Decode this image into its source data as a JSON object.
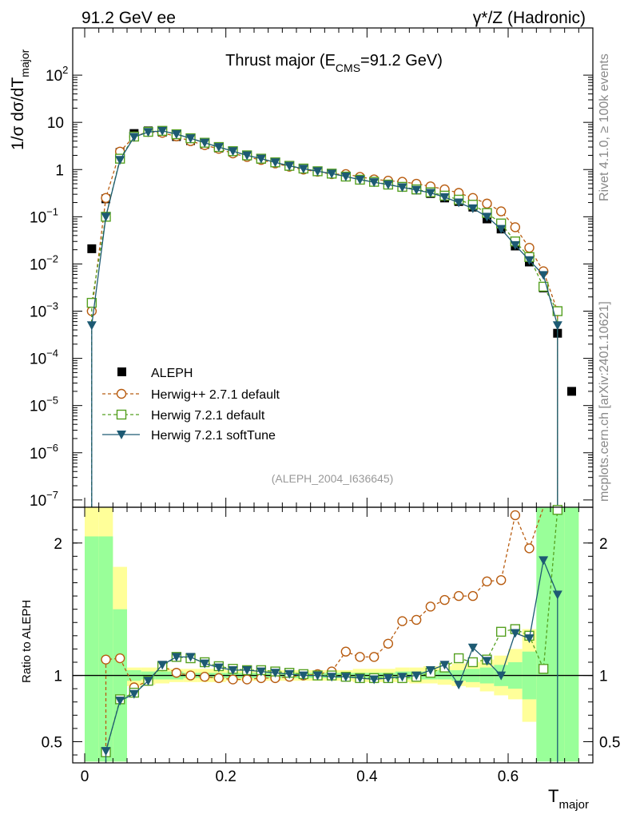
{
  "header": {
    "left": "91.2 GeV ee",
    "right": "γ*/Z (Hadronic)"
  },
  "side_text": {
    "rivet": "Rivet 4.1.0, ≥ 100k events",
    "mcplots": "mcplots.cern.ch [arXiv:2401.10621]"
  },
  "chart_data": [
    {
      "id": "main",
      "type": "scatter",
      "title_prefix": "Thrust major (E",
      "title_sub": "CMS",
      "title_suffix": "=91.2 GeV)",
      "ylabel_main": "1/σ  dσ/dT",
      "ylabel_sub": "major",
      "yscale": "log",
      "ylim": [
        7e-08,
        1000
      ],
      "xlim": [
        -0.017,
        0.72
      ],
      "y_ticks": [
        {
          "v": 1e-07,
          "base": "10",
          "exp": "−7"
        },
        {
          "v": 1e-06,
          "base": "10",
          "exp": "−6"
        },
        {
          "v": 1e-05,
          "base": "10",
          "exp": "−5"
        },
        {
          "v": 0.0001,
          "base": "10",
          "exp": "−4"
        },
        {
          "v": 0.001,
          "base": "10",
          "exp": "−3"
        },
        {
          "v": 0.01,
          "base": "10",
          "exp": "−2"
        },
        {
          "v": 0.1,
          "base": "10",
          "exp": "−1"
        },
        {
          "v": 1,
          "base": "1",
          "exp": ""
        },
        {
          "v": 10,
          "base": "10",
          "exp": ""
        },
        {
          "v": 100,
          "base": "10",
          "exp": "2"
        }
      ],
      "watermark": "(ALEPH_2004_I636645)",
      "legend": [
        {
          "label": "ALEPH"
        },
        {
          "label": "Herwig++ 2.7.1 default"
        },
        {
          "label": "Herwig 7.2.1 default"
        },
        {
          "label": "Herwig 7.2.1 softTune"
        }
      ],
      "x": [
        0.01,
        0.03,
        0.05,
        0.07,
        0.09,
        0.11,
        0.13,
        0.15,
        0.17,
        0.19,
        0.21,
        0.23,
        0.25,
        0.27,
        0.29,
        0.31,
        0.33,
        0.35,
        0.37,
        0.39,
        0.41,
        0.43,
        0.45,
        0.47,
        0.49,
        0.51,
        0.53,
        0.55,
        0.57,
        0.59,
        0.61,
        0.63,
        0.65,
        0.67,
        0.69
      ],
      "series": [
        {
          "name": "ALEPH",
          "color": "#000000",
          "marker": "square-filled",
          "values": [
            0.021,
            0.24,
            2.3,
            5.8,
            6.6,
            6.2,
            5.0,
            4.1,
            3.4,
            2.85,
            2.35,
            1.95,
            1.65,
            1.4,
            1.2,
            1.05,
            0.92,
            0.82,
            0.72,
            0.63,
            0.56,
            0.49,
            0.43,
            0.37,
            0.31,
            0.25,
            0.21,
            0.16,
            0.09,
            0.055,
            0.024,
            0.011,
            0.0031,
            0.00034,
            2e-05
          ]
        },
        {
          "name": "Herwig++ 2.7.1 default",
          "color": "#b85c10",
          "marker": "circle-open",
          "dash": "4,3",
          "values": [
            0.001,
            0.25,
            2.4,
            5.0,
            6.3,
            6.0,
            5.05,
            4.0,
            3.3,
            2.75,
            2.2,
            1.85,
            1.6,
            1.35,
            1.15,
            1.0,
            0.9,
            0.8,
            0.8,
            0.7,
            0.62,
            0.58,
            0.55,
            0.5,
            0.44,
            0.38,
            0.32,
            0.25,
            0.19,
            0.13,
            0.06,
            0.022,
            0.007,
            0.001
          ]
        },
        {
          "name": "Herwig 7.2.1 default",
          "color": "#55a020",
          "marker": "square-open",
          "dash": "4,3",
          "values": [
            0.0015,
            0.1,
            1.7,
            5.0,
            6.3,
            6.6,
            5.6,
            4.6,
            3.7,
            3.0,
            2.45,
            2.0,
            1.7,
            1.42,
            1.2,
            1.05,
            0.92,
            0.82,
            0.71,
            0.61,
            0.55,
            0.48,
            0.43,
            0.38,
            0.33,
            0.28,
            0.23,
            0.18,
            0.12,
            0.072,
            0.03,
            0.014,
            0.0033,
            0.001
          ]
        },
        {
          "name": "Herwig 7.2.1 softTune",
          "color": "#1d5a73",
          "marker": "triangle-down",
          "values": [
            0.0005,
            0.1,
            1.6,
            4.9,
            6.2,
            6.6,
            5.6,
            4.6,
            3.7,
            3.0,
            2.45,
            2.0,
            1.7,
            1.42,
            1.2,
            1.04,
            0.92,
            0.82,
            0.71,
            0.61,
            0.54,
            0.48,
            0.42,
            0.37,
            0.32,
            0.26,
            0.2,
            0.15,
            0.1,
            0.055,
            0.025,
            0.012,
            0.0058,
            0.0005
          ]
        }
      ]
    },
    {
      "id": "ratio",
      "type": "scatter",
      "ylabel": "Ratio to ALEPH",
      "ylim": [
        0.34,
        2.27
      ],
      "xlim": [
        -0.017,
        0.72
      ],
      "xlabel_main": "T",
      "xlabel_sub": "major",
      "x_ticks": [
        {
          "v": 0,
          "label": "0"
        },
        {
          "v": 0.2,
          "label": "0.2"
        },
        {
          "v": 0.4,
          "label": "0.4"
        },
        {
          "v": 0.6,
          "label": "0.6"
        }
      ],
      "y_ticks": [
        {
          "v": 0.5,
          "label": "0.5"
        },
        {
          "v": 1,
          "label": "1"
        },
        {
          "v": 2,
          "label": "2"
        }
      ],
      "band_x_edges": [
        0,
        0.02,
        0.04,
        0.06,
        0.08,
        0.1,
        0.12,
        0.14,
        0.16,
        0.18,
        0.2,
        0.22,
        0.24,
        0.26,
        0.28,
        0.3,
        0.32,
        0.34,
        0.36,
        0.38,
        0.4,
        0.42,
        0.44,
        0.46,
        0.48,
        0.5,
        0.52,
        0.54,
        0.56,
        0.58,
        0.6,
        0.62,
        0.64,
        0.66,
        0.68,
        0.7
      ],
      "band_outer": [
        [
          0.35,
          2.27
        ],
        [
          0.35,
          2.27
        ],
        [
          0.35,
          1.82
        ],
        [
          0.92,
          1.06
        ],
        [
          0.93,
          1.06
        ],
        [
          0.94,
          1.06
        ],
        [
          0.95,
          1.05
        ],
        [
          0.95,
          1.05
        ],
        [
          0.95,
          1.05
        ],
        [
          0.95,
          1.05
        ],
        [
          0.96,
          1.04
        ],
        [
          0.96,
          1.04
        ],
        [
          0.96,
          1.04
        ],
        [
          0.96,
          1.04
        ],
        [
          0.96,
          1.04
        ],
        [
          0.96,
          1.04
        ],
        [
          0.96,
          1.04
        ],
        [
          0.96,
          1.04
        ],
        [
          0.96,
          1.04
        ],
        [
          0.95,
          1.05
        ],
        [
          0.95,
          1.05
        ],
        [
          0.95,
          1.05
        ],
        [
          0.95,
          1.06
        ],
        [
          0.94,
          1.06
        ],
        [
          0.94,
          1.07
        ],
        [
          0.93,
          1.07
        ],
        [
          0.92,
          1.09
        ],
        [
          0.91,
          1.1
        ],
        [
          0.88,
          1.12
        ],
        [
          0.85,
          1.15
        ],
        [
          0.82,
          1.2
        ],
        [
          0.65,
          1.35
        ],
        [
          0.5,
          1.45
        ],
        [
          0.35,
          2.27
        ],
        [
          0.35,
          2.27
        ]
      ],
      "band_inner": [
        [
          0.35,
          2.05
        ],
        [
          0.35,
          2.05
        ],
        [
          0.35,
          1.5
        ],
        [
          0.96,
          1.04
        ],
        [
          0.97,
          1.03
        ],
        [
          0.97,
          1.03
        ],
        [
          0.97,
          1.03
        ],
        [
          0.98,
          1.02
        ],
        [
          0.98,
          1.02
        ],
        [
          0.98,
          1.02
        ],
        [
          0.98,
          1.02
        ],
        [
          0.98,
          1.02
        ],
        [
          0.98,
          1.02
        ],
        [
          0.98,
          1.02
        ],
        [
          0.98,
          1.02
        ],
        [
          0.98,
          1.02
        ],
        [
          0.98,
          1.02
        ],
        [
          0.98,
          1.02
        ],
        [
          0.98,
          1.02
        ],
        [
          0.98,
          1.02
        ],
        [
          0.98,
          1.02
        ],
        [
          0.98,
          1.02
        ],
        [
          0.97,
          1.03
        ],
        [
          0.97,
          1.03
        ],
        [
          0.97,
          1.03
        ],
        [
          0.97,
          1.04
        ],
        [
          0.96,
          1.04
        ],
        [
          0.95,
          1.05
        ],
        [
          0.94,
          1.06
        ],
        [
          0.92,
          1.08
        ],
        [
          0.9,
          1.1
        ],
        [
          0.82,
          1.18
        ],
        [
          0.35,
          2.27
        ],
        [
          0.35,
          2.27
        ],
        [
          0.35,
          2.27
        ]
      ],
      "x": [
        0.03,
        0.05,
        0.07,
        0.09,
        0.11,
        0.13,
        0.15,
        0.17,
        0.19,
        0.21,
        0.23,
        0.25,
        0.27,
        0.29,
        0.31,
        0.33,
        0.35,
        0.37,
        0.39,
        0.41,
        0.43,
        0.45,
        0.47,
        0.49,
        0.51,
        0.53,
        0.55,
        0.57,
        0.59,
        0.61,
        0.63,
        0.65,
        0.67
      ],
      "series": [
        {
          "name": "Herwig++ 2.7.1 default",
          "color": "#b85c10",
          "marker": "circle-open",
          "dash": "4,3",
          "values": [
            1.12,
            1.13,
            0.91,
            0.96,
            1.07,
            1.02,
            1.0,
            0.99,
            0.98,
            0.97,
            0.97,
            0.98,
            0.98,
            0.99,
            1.0,
            1.01,
            1.03,
            1.18,
            1.14,
            1.14,
            1.24,
            1.41,
            1.42,
            1.52,
            1.57,
            1.6,
            1.6,
            1.71,
            1.72,
            2.21,
            1.96,
            2.3
          ],
          "start": 0.03
        },
        {
          "name": "Herwig 7.2.1 default",
          "color": "#55a020",
          "marker": "square-open",
          "dash": "4,3",
          "values": [
            0.42,
            0.82,
            0.87,
            0.96,
            1.07,
            1.14,
            1.13,
            1.1,
            1.07,
            1.05,
            1.04,
            1.04,
            1.03,
            1.02,
            1.01,
            1.0,
            1.0,
            0.99,
            0.98,
            0.98,
            0.98,
            0.98,
            0.99,
            1.02,
            1.06,
            1.13,
            1.1,
            1.12,
            1.33,
            1.35,
            1.3,
            1.05,
            2.25
          ]
        },
        {
          "name": "Herwig 7.2.1 softTune",
          "color": "#1d5a73",
          "marker": "triangle-down",
          "values": [
            0.43,
            0.81,
            0.86,
            0.96,
            1.08,
            1.14,
            1.14,
            1.09,
            1.06,
            1.04,
            1.04,
            1.03,
            1.02,
            1.01,
            1.0,
            1.0,
            0.99,
            0.99,
            0.98,
            0.97,
            0.98,
            0.99,
            1.0,
            1.04,
            1.08,
            0.93,
            1.21,
            1.11,
            1.0,
            1.32,
            1.28,
            1.87,
            1.61
          ]
        }
      ]
    }
  ]
}
